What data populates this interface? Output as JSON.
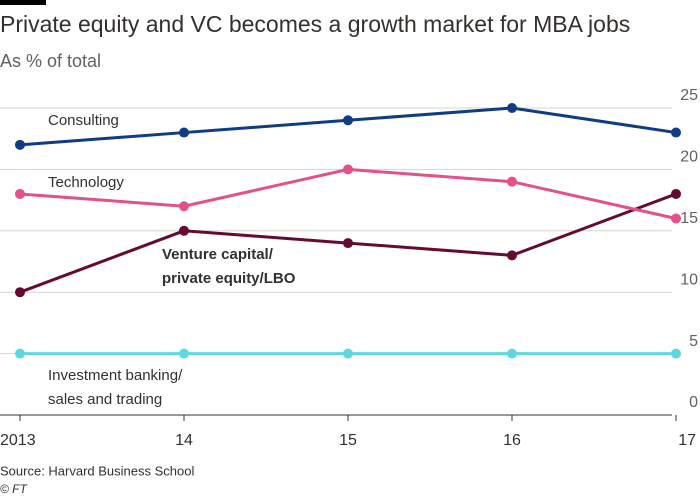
{
  "chart_data": {
    "type": "line",
    "title": "Private equity and VC becomes a growth market for MBA jobs",
    "subtitle": "As % of total",
    "categories": [
      "2013",
      "14",
      "15",
      "16",
      "17"
    ],
    "series": [
      {
        "name": "Consulting",
        "color": "#0f3c84",
        "values": [
          22,
          23,
          24,
          25,
          23
        ]
      },
      {
        "name": "Technology",
        "color": "#e3508a",
        "values": [
          18,
          17,
          20,
          19,
          16
        ]
      },
      {
        "name": "Venture capital/ private equity/LBO",
        "color": "#650a31",
        "values": [
          10,
          15,
          14,
          13,
          18
        ]
      },
      {
        "name": "Investment banking/ sales and trading",
        "color": "#5ed7dd",
        "values": [
          5,
          5,
          5,
          5,
          5
        ]
      }
    ],
    "ylim": [
      0,
      25
    ],
    "yticks": [
      0,
      5,
      10,
      15,
      20,
      25
    ],
    "grid": true,
    "source": "Source: Harvard Business School",
    "credit": "© FT"
  }
}
